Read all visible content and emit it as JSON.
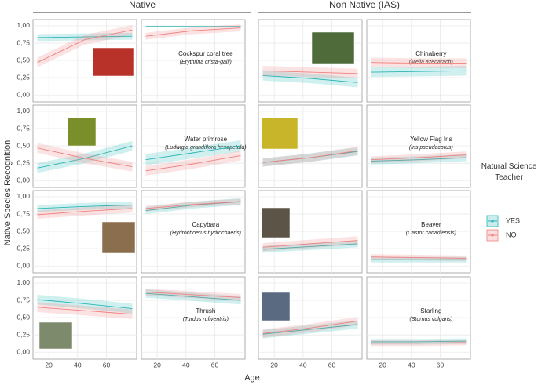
{
  "column_groups": [
    "Native",
    "Non Native (IAS)"
  ],
  "x_label": "Age",
  "y_label": "Native Species Recognition",
  "legend": {
    "title": "Natural Science Teacher",
    "position": "right"
  },
  "chart_data": [
    {
      "type": "line",
      "x": [
        12,
        45,
        78
      ],
      "xlim": [
        9,
        81
      ],
      "xticks": [
        20,
        40,
        60
      ],
      "ylim": [
        -0.1,
        1.09
      ],
      "yticks": [
        {
          "value": 0,
          "label": "0,00"
        },
        {
          "value": 0.25,
          "label": "0,25"
        },
        {
          "value": 0.5,
          "label": "0,50"
        },
        {
          "value": 0.75,
          "label": "0,75"
        },
        {
          "value": 1,
          "label": "1,00"
        }
      ],
      "series": [
        {
          "name": "YES",
          "color": "#2bb5b5",
          "values": [
            0.83,
            0.84,
            0.85
          ],
          "ci_halfwidth": 0.05
        },
        {
          "name": "NO",
          "color": "#f08080",
          "values": [
            0.47,
            0.8,
            0.94
          ],
          "ci_halfwidth": 0.07
        }
      ]
    },
    {
      "type": "line",
      "label": "Cockspur coral tree",
      "scientific_name": "(Erythrina crista-galli)",
      "x": [
        12,
        45,
        78
      ],
      "xlim": [
        9,
        81
      ],
      "xticks": [
        20,
        40,
        60
      ],
      "ylim": [
        -0.1,
        1.09
      ],
      "yticks": [
        {
          "value": 0,
          "label": "0,00"
        },
        {
          "value": 0.25,
          "label": "0,25"
        },
        {
          "value": 0.5,
          "label": "0,50"
        },
        {
          "value": 0.75,
          "label": "0,75"
        },
        {
          "value": 1,
          "label": "1,00"
        }
      ],
      "series": [
        {
          "name": "YES",
          "color": "#2bb5b5",
          "values": [
            0.99,
            0.99,
            0.99
          ],
          "ci_halfwidth": 0.01
        },
        {
          "name": "NO",
          "color": "#f08080",
          "values": [
            0.85,
            0.93,
            0.97
          ],
          "ci_halfwidth": 0.05
        }
      ]
    },
    {
      "type": "line",
      "x": [
        12,
        45,
        78
      ],
      "xlim": [
        9,
        81
      ],
      "xticks": [
        20,
        40,
        60
      ],
      "ylim": [
        -0.1,
        1.09
      ],
      "yticks": [
        {
          "value": 0,
          "label": "0,00"
        },
        {
          "value": 0.25,
          "label": "0,25"
        },
        {
          "value": 0.5,
          "label": "0,50"
        },
        {
          "value": 0.75,
          "label": "0,75"
        },
        {
          "value": 1,
          "label": "1,00"
        }
      ],
      "series": [
        {
          "name": "YES",
          "color": "#2bb5b5",
          "values": [
            0.28,
            0.24,
            0.18
          ],
          "ci_halfwidth": 0.07
        },
        {
          "name": "NO",
          "color": "#f08080",
          "values": [
            0.35,
            0.33,
            0.31
          ],
          "ci_halfwidth": 0.07
        }
      ]
    },
    {
      "type": "line",
      "label": "Chinaberry",
      "scientific_name": "(Melia azedarach)",
      "x": [
        12,
        45,
        78
      ],
      "xlim": [
        9,
        81
      ],
      "xticks": [
        20,
        40,
        60
      ],
      "ylim": [
        -0.1,
        1.09
      ],
      "yticks": [
        {
          "value": 0,
          "label": "0,00"
        },
        {
          "value": 0.25,
          "label": "0,25"
        },
        {
          "value": 0.5,
          "label": "0,50"
        },
        {
          "value": 0.75,
          "label": "0,75"
        },
        {
          "value": 1,
          "label": "1,00"
        }
      ],
      "series": [
        {
          "name": "YES",
          "color": "#2bb5b5",
          "values": [
            0.33,
            0.34,
            0.35
          ],
          "ci_halfwidth": 0.07
        },
        {
          "name": "NO",
          "color": "#f08080",
          "values": [
            0.47,
            0.46,
            0.46
          ],
          "ci_halfwidth": 0.07
        }
      ]
    },
    {
      "type": "line",
      "x": [
        12,
        45,
        78
      ],
      "xlim": [
        9,
        81
      ],
      "xticks": [
        20,
        40,
        60
      ],
      "ylim": [
        -0.1,
        1.09
      ],
      "yticks": [
        {
          "value": 0,
          "label": "0,00"
        },
        {
          "value": 0.25,
          "label": "0,25"
        },
        {
          "value": 0.5,
          "label": "0,50"
        },
        {
          "value": 0.75,
          "label": "0,75"
        },
        {
          "value": 1,
          "label": "1,00"
        }
      ],
      "series": [
        {
          "name": "YES",
          "color": "#2bb5b5",
          "values": [
            0.18,
            0.32,
            0.5
          ],
          "ci_halfwidth": 0.07
        },
        {
          "name": "NO",
          "color": "#f08080",
          "values": [
            0.47,
            0.32,
            0.2
          ],
          "ci_halfwidth": 0.07
        }
      ]
    },
    {
      "type": "line",
      "label": "Water primrose",
      "scientific_name": "(Ludwigia grandiflora hexapetala)",
      "x": [
        12,
        45,
        78
      ],
      "xlim": [
        9,
        81
      ],
      "xticks": [
        20,
        40,
        60
      ],
      "ylim": [
        -0.1,
        1.09
      ],
      "yticks": [
        {
          "value": 0,
          "label": "0,00"
        },
        {
          "value": 0.25,
          "label": "0,25"
        },
        {
          "value": 0.5,
          "label": "0,50"
        },
        {
          "value": 0.75,
          "label": "0,75"
        },
        {
          "value": 1,
          "label": "1,00"
        }
      ],
      "series": [
        {
          "name": "YES",
          "color": "#2bb5b5",
          "values": [
            0.3,
            0.4,
            0.5
          ],
          "ci_halfwidth": 0.08
        },
        {
          "name": "NO",
          "color": "#f08080",
          "values": [
            0.14,
            0.24,
            0.36
          ],
          "ci_halfwidth": 0.07
        }
      ]
    },
    {
      "type": "line",
      "x": [
        12,
        45,
        78
      ],
      "xlim": [
        9,
        81
      ],
      "xticks": [
        20,
        40,
        60
      ],
      "ylim": [
        -0.1,
        1.09
      ],
      "yticks": [
        {
          "value": 0,
          "label": "0,00"
        },
        {
          "value": 0.25,
          "label": "0,25"
        },
        {
          "value": 0.5,
          "label": "0,50"
        },
        {
          "value": 0.75,
          "label": "0,75"
        },
        {
          "value": 1,
          "label": "1,00"
        }
      ],
      "series": [
        {
          "name": "YES",
          "color": "#2bb5b5",
          "values": [
            0.26,
            0.33,
            0.42
          ],
          "ci_halfwidth": 0.06
        },
        {
          "name": "NO",
          "color": "#f08080",
          "values": [
            0.26,
            0.33,
            0.43
          ],
          "ci_halfwidth": 0.06
        }
      ]
    },
    {
      "type": "line",
      "label": "Yellow Flag Iris",
      "scientific_name": "(Iris pseudacorus)",
      "x": [
        12,
        45,
        78
      ],
      "xlim": [
        9,
        81
      ],
      "xticks": [
        20,
        40,
        60
      ],
      "ylim": [
        -0.1,
        1.09
      ],
      "yticks": [
        {
          "value": 0,
          "label": "0,00"
        },
        {
          "value": 0.25,
          "label": "0,25"
        },
        {
          "value": 0.5,
          "label": "0,50"
        },
        {
          "value": 0.75,
          "label": "0,75"
        },
        {
          "value": 1,
          "label": "1,00"
        }
      ],
      "series": [
        {
          "name": "YES",
          "color": "#2bb5b5",
          "values": [
            0.28,
            0.3,
            0.33
          ],
          "ci_halfwidth": 0.05
        },
        {
          "name": "NO",
          "color": "#f08080",
          "values": [
            0.3,
            0.33,
            0.37
          ],
          "ci_halfwidth": 0.05
        }
      ]
    },
    {
      "type": "line",
      "x": [
        12,
        45,
        78
      ],
      "xlim": [
        9,
        81
      ],
      "xticks": [
        20,
        40,
        60
      ],
      "ylim": [
        -0.1,
        1.09
      ],
      "yticks": [
        {
          "value": 0,
          "label": "0,00"
        },
        {
          "value": 0.25,
          "label": "0,25"
        },
        {
          "value": 0.5,
          "label": "0,50"
        },
        {
          "value": 0.75,
          "label": "0,75"
        },
        {
          "value": 1,
          "label": "1,00"
        }
      ],
      "series": [
        {
          "name": "YES",
          "color": "#2bb5b5",
          "values": [
            0.83,
            0.86,
            0.88
          ],
          "ci_halfwidth": 0.05
        },
        {
          "name": "NO",
          "color": "#f08080",
          "values": [
            0.74,
            0.79,
            0.83
          ],
          "ci_halfwidth": 0.06
        }
      ]
    },
    {
      "type": "line",
      "label": "Capybara",
      "scientific_name": "(Hydrochoerus hydrochaeris)",
      "x": [
        12,
        45,
        78
      ],
      "xlim": [
        9,
        81
      ],
      "xticks": [
        20,
        40,
        60
      ],
      "ylim": [
        -0.1,
        1.09
      ],
      "yticks": [
        {
          "value": 0,
          "label": "0,00"
        },
        {
          "value": 0.25,
          "label": "0,25"
        },
        {
          "value": 0.5,
          "label": "0,50"
        },
        {
          "value": 0.75,
          "label": "0,75"
        },
        {
          "value": 1,
          "label": "1,00"
        }
      ],
      "series": [
        {
          "name": "YES",
          "color": "#2bb5b5",
          "values": [
            0.8,
            0.88,
            0.93
          ],
          "ci_halfwidth": 0.05
        },
        {
          "name": "NO",
          "color": "#f08080",
          "values": [
            0.83,
            0.89,
            0.93
          ],
          "ci_halfwidth": 0.04
        }
      ]
    },
    {
      "type": "line",
      "x": [
        12,
        45,
        78
      ],
      "xlim": [
        9,
        81
      ],
      "xticks": [
        20,
        40,
        60
      ],
      "ylim": [
        -0.1,
        1.09
      ],
      "yticks": [
        {
          "value": 0,
          "label": "0,00"
        },
        {
          "value": 0.25,
          "label": "0,25"
        },
        {
          "value": 0.5,
          "label": "0,50"
        },
        {
          "value": 0.75,
          "label": "0,75"
        },
        {
          "value": 1,
          "label": "1,00"
        }
      ],
      "series": [
        {
          "name": "YES",
          "color": "#2bb5b5",
          "values": [
            0.24,
            0.28,
            0.32
          ],
          "ci_halfwidth": 0.05
        },
        {
          "name": "NO",
          "color": "#f08080",
          "values": [
            0.27,
            0.32,
            0.37
          ],
          "ci_halfwidth": 0.06
        }
      ]
    },
    {
      "type": "line",
      "label": "Beaver",
      "scientific_name": "(Castor canadiensis)",
      "x": [
        12,
        45,
        78
      ],
      "xlim": [
        9,
        81
      ],
      "xticks": [
        20,
        40,
        60
      ],
      "ylim": [
        -0.1,
        1.09
      ],
      "yticks": [
        {
          "value": 0,
          "label": "0,00"
        },
        {
          "value": 0.25,
          "label": "0,25"
        },
        {
          "value": 0.5,
          "label": "0,50"
        },
        {
          "value": 0.75,
          "label": "0,75"
        },
        {
          "value": 1,
          "label": "1,00"
        }
      ],
      "series": [
        {
          "name": "YES",
          "color": "#2bb5b5",
          "values": [
            0.09,
            0.09,
            0.09
          ],
          "ci_halfwidth": 0.04
        },
        {
          "name": "NO",
          "color": "#f08080",
          "values": [
            0.13,
            0.12,
            0.11
          ],
          "ci_halfwidth": 0.04
        }
      ]
    },
    {
      "type": "line",
      "x": [
        12,
        45,
        78
      ],
      "xlim": [
        9,
        81
      ],
      "xticks": [
        20,
        40,
        60
      ],
      "ylim": [
        -0.1,
        1.09
      ],
      "yticks": [
        {
          "value": 0,
          "label": "0,00"
        },
        {
          "value": 0.25,
          "label": "0,25"
        },
        {
          "value": 0.5,
          "label": "0,50"
        },
        {
          "value": 0.75,
          "label": "0,75"
        },
        {
          "value": 1,
          "label": "1,00"
        }
      ],
      "series": [
        {
          "name": "YES",
          "color": "#2bb5b5",
          "values": [
            0.76,
            0.7,
            0.63
          ],
          "ci_halfwidth": 0.07
        },
        {
          "name": "NO",
          "color": "#f08080",
          "values": [
            0.65,
            0.6,
            0.55
          ],
          "ci_halfwidth": 0.07
        }
      ]
    },
    {
      "type": "line",
      "label": "Thrush",
      "scientific_name": "(Turdus rufiventris)",
      "x": [
        12,
        45,
        78
      ],
      "xlim": [
        9,
        81
      ],
      "xticks": [
        20,
        40,
        60
      ],
      "ylim": [
        -0.1,
        1.09
      ],
      "yticks": [
        {
          "value": 0,
          "label": "0,00"
        },
        {
          "value": 0.25,
          "label": "0,25"
        },
        {
          "value": 0.5,
          "label": "0,50"
        },
        {
          "value": 0.75,
          "label": "0,75"
        },
        {
          "value": 1,
          "label": "1,00"
        }
      ],
      "series": [
        {
          "name": "YES",
          "color": "#2bb5b5",
          "values": [
            0.85,
            0.8,
            0.75
          ],
          "ci_halfwidth": 0.06
        },
        {
          "name": "NO",
          "color": "#f08080",
          "values": [
            0.87,
            0.83,
            0.79
          ],
          "ci_halfwidth": 0.05
        }
      ]
    },
    {
      "type": "line",
      "x": [
        12,
        45,
        78
      ],
      "xlim": [
        9,
        81
      ],
      "xticks": [
        20,
        40,
        60
      ],
      "ylim": [
        -0.1,
        1.09
      ],
      "yticks": [
        {
          "value": 0,
          "label": "0,00"
        },
        {
          "value": 0.25,
          "label": "0,25"
        },
        {
          "value": 0.5,
          "label": "0,50"
        },
        {
          "value": 0.75,
          "label": "0,75"
        },
        {
          "value": 1,
          "label": "1,00"
        }
      ],
      "series": [
        {
          "name": "YES",
          "color": "#2bb5b5",
          "values": [
            0.26,
            0.33,
            0.4
          ],
          "ci_halfwidth": 0.06
        },
        {
          "name": "NO",
          "color": "#f08080",
          "values": [
            0.27,
            0.35,
            0.45
          ],
          "ci_halfwidth": 0.06
        }
      ]
    },
    {
      "type": "line",
      "label": "Starling",
      "scientific_name": "(Sturnus vulgaris)",
      "x": [
        12,
        45,
        78
      ],
      "xlim": [
        9,
        81
      ],
      "xticks": [
        20,
        40,
        60
      ],
      "ylim": [
        -0.1,
        1.09
      ],
      "yticks": [
        {
          "value": 0,
          "label": "0,00"
        },
        {
          "value": 0.25,
          "label": "0,25"
        },
        {
          "value": 0.5,
          "label": "0,50"
        },
        {
          "value": 0.75,
          "label": "0,75"
        },
        {
          "value": 1,
          "label": "1,00"
        }
      ],
      "series": [
        {
          "name": "YES",
          "color": "#2bb5b5",
          "values": [
            0.15,
            0.15,
            0.16
          ],
          "ci_halfwidth": 0.04
        },
        {
          "name": "NO",
          "color": "#f08080",
          "values": [
            0.13,
            0.13,
            0.14
          ],
          "ci_halfwidth": 0.04
        }
      ]
    }
  ]
}
